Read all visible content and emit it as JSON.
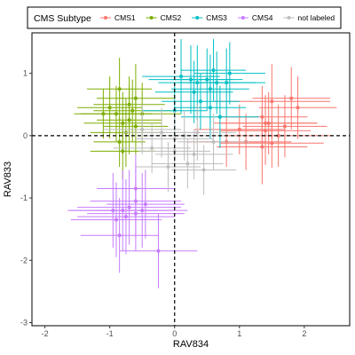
{
  "chart_data": {
    "type": "scatter",
    "title": "",
    "xlabel": "RAV834",
    "ylabel": "RAV833",
    "xlim": [
      -2.2,
      2.7
    ],
    "ylim": [
      -3.05,
      1.65
    ],
    "xticks": [
      -2,
      -1,
      0,
      1,
      2
    ],
    "yticks": [
      -3,
      -2,
      -1,
      0,
      1
    ],
    "reference_lines": {
      "x": 0,
      "y": 0,
      "style": "dashed"
    },
    "grid": false,
    "error_bars": true,
    "legend": {
      "title": "CMS Subtype",
      "placement": "top",
      "entries": [
        "CMS1",
        "CMS2",
        "CMS3",
        "CMS4",
        "not labeled"
      ]
    },
    "series": [
      {
        "name": "CMS1",
        "color": "#F8766D",
        "points": [
          {
            "x": 1.5,
            "y": 0.55,
            "xe": 0.9,
            "ye": 0.6
          },
          {
            "x": 1.35,
            "y": 0.3,
            "xe": 0.7,
            "ye": 0.5
          },
          {
            "x": 1.4,
            "y": 0.2,
            "xe": 0.8,
            "ye": 0.45
          },
          {
            "x": 1.4,
            "y": 0.08,
            "xe": 0.7,
            "ye": 0.55
          },
          {
            "x": 1.45,
            "y": 0.2,
            "xe": 0.75,
            "ye": 0.5
          },
          {
            "x": 1.5,
            "y": -0.12,
            "xe": 0.8,
            "ye": 0.4
          },
          {
            "x": 1.6,
            "y": 0.0,
            "xe": 0.85,
            "ye": 0.5
          },
          {
            "x": 1.35,
            "y": -0.18,
            "xe": 0.7,
            "ye": 0.6
          },
          {
            "x": 0.8,
            "y": -0.1,
            "xe": 0.6,
            "ye": 0.4
          },
          {
            "x": 1.1,
            "y": -0.1,
            "xe": 0.7,
            "ye": 0.45
          },
          {
            "x": 1.8,
            "y": 0.6,
            "xe": 0.6,
            "ye": 0.5
          },
          {
            "x": 1.9,
            "y": 0.45,
            "xe": 0.6,
            "ye": 0.5
          },
          {
            "x": 1.0,
            "y": 0.1,
            "xe": 0.7,
            "ye": 0.4
          },
          {
            "x": 1.7,
            "y": 0.15,
            "xe": 0.65,
            "ye": 0.5
          }
        ]
      },
      {
        "name": "CMS2",
        "color": "#7CAE00",
        "points": [
          {
            "x": -0.85,
            "y": 0.75,
            "xe": 0.5,
            "ye": 0.5
          },
          {
            "x": -0.6,
            "y": 0.6,
            "xe": 0.6,
            "ye": 0.55
          },
          {
            "x": -0.7,
            "y": 0.5,
            "xe": 0.55,
            "ye": 0.45
          },
          {
            "x": -1.0,
            "y": 0.45,
            "xe": 0.5,
            "ye": 0.5
          },
          {
            "x": -0.65,
            "y": 0.4,
            "xe": 0.6,
            "ye": 0.5
          },
          {
            "x": -0.9,
            "y": 0.35,
            "xe": 0.55,
            "ye": 0.45
          },
          {
            "x": -0.5,
            "y": 0.35,
            "xe": 0.6,
            "ye": 0.5
          },
          {
            "x": -0.7,
            "y": 0.25,
            "xe": 0.5,
            "ye": 0.55
          },
          {
            "x": -1.1,
            "y": 0.35,
            "xe": 0.45,
            "ye": 0.4
          },
          {
            "x": -0.8,
            "y": 0.2,
            "xe": 0.6,
            "ye": 0.5
          },
          {
            "x": -0.75,
            "y": 0.05,
            "xe": 0.55,
            "ye": 0.55
          },
          {
            "x": -0.6,
            "y": 0.15,
            "xe": 0.5,
            "ye": 0.45
          },
          {
            "x": -0.8,
            "y": -0.25,
            "xe": 0.5,
            "ye": 0.45
          },
          {
            "x": -0.85,
            "y": -0.1,
            "xe": 0.4,
            "ye": 0.4
          }
        ]
      },
      {
        "name": "CMS3",
        "color": "#00BFC4",
        "points": [
          {
            "x": 0.1,
            "y": 0.95,
            "xe": 0.6,
            "ye": 0.6
          },
          {
            "x": 0.25,
            "y": 0.9,
            "xe": 0.65,
            "ye": 0.55
          },
          {
            "x": 0.35,
            "y": 0.85,
            "xe": 0.6,
            "ye": 0.6
          },
          {
            "x": 0.5,
            "y": 0.9,
            "xe": 0.55,
            "ye": 0.5
          },
          {
            "x": 0.55,
            "y": 0.75,
            "xe": 0.6,
            "ye": 0.55
          },
          {
            "x": 0.65,
            "y": 0.85,
            "xe": 0.6,
            "ye": 0.5
          },
          {
            "x": 0.8,
            "y": 0.85,
            "xe": 0.6,
            "ye": 0.55
          },
          {
            "x": 0.85,
            "y": 1.0,
            "xe": 0.55,
            "ye": 0.5
          },
          {
            "x": 0.6,
            "y": 1.05,
            "xe": 0.5,
            "ye": 0.5
          },
          {
            "x": 0.4,
            "y": 0.55,
            "xe": 0.6,
            "ye": 0.45
          },
          {
            "x": 0.55,
            "y": 0.45,
            "xe": 0.55,
            "ye": 0.5
          },
          {
            "x": 0.0,
            "y": 0.4,
            "xe": 0.5,
            "ye": 0.45
          },
          {
            "x": 0.7,
            "y": 0.3,
            "xe": 0.6,
            "ye": 0.5
          },
          {
            "x": 0.3,
            "y": 0.7,
            "xe": 0.6,
            "ye": 0.5
          }
        ]
      },
      {
        "name": "CMS4",
        "color": "#C77CFF",
        "points": [
          {
            "x": -0.6,
            "y": -1.05,
            "xe": 0.7,
            "ye": 0.6
          },
          {
            "x": -0.7,
            "y": -1.15,
            "xe": 0.8,
            "ye": 0.6
          },
          {
            "x": -0.8,
            "y": -1.2,
            "xe": 0.8,
            "ye": 0.65
          },
          {
            "x": -0.95,
            "y": -1.2,
            "xe": 0.7,
            "ye": 0.6
          },
          {
            "x": -0.6,
            "y": -1.25,
            "xe": 0.75,
            "ye": 0.6
          },
          {
            "x": -0.5,
            "y": -1.2,
            "xe": 0.7,
            "ye": 0.6
          },
          {
            "x": -0.75,
            "y": -1.3,
            "xe": 0.75,
            "ye": 0.6
          },
          {
            "x": -0.9,
            "y": -1.35,
            "xe": 0.7,
            "ye": 0.6
          },
          {
            "x": -0.6,
            "y": -0.85,
            "xe": 0.6,
            "ye": 0.55
          },
          {
            "x": -0.85,
            "y": -1.6,
            "xe": 0.6,
            "ye": 0.6
          },
          {
            "x": -0.25,
            "y": -1.85,
            "xe": 0.6,
            "ye": 0.6
          },
          {
            "x": -0.45,
            "y": -1.1,
            "xe": 0.6,
            "ye": 0.55
          }
        ]
      },
      {
        "name": "not labeled",
        "color": "#BEBEBE",
        "points": [
          {
            "x": -0.2,
            "y": 0.05,
            "xe": 0.6,
            "ye": 0.4
          },
          {
            "x": 0.0,
            "y": -0.05,
            "xe": 0.6,
            "ye": 0.45
          },
          {
            "x": 0.15,
            "y": 0.0,
            "xe": 0.65,
            "ye": 0.4
          },
          {
            "x": 0.35,
            "y": 0.05,
            "xe": 0.6,
            "ye": 0.45
          },
          {
            "x": -0.35,
            "y": -0.2,
            "xe": 0.6,
            "ye": 0.4
          },
          {
            "x": 0.0,
            "y": -0.25,
            "xe": 0.55,
            "ye": 0.45
          },
          {
            "x": 0.3,
            "y": -0.3,
            "xe": 0.6,
            "ye": 0.4
          },
          {
            "x": -0.5,
            "y": 0.1,
            "xe": 0.6,
            "ye": 0.4
          },
          {
            "x": 0.6,
            "y": -0.1,
            "xe": 0.55,
            "ye": 0.45
          },
          {
            "x": 0.2,
            "y": -0.45,
            "xe": 0.55,
            "ye": 0.4
          },
          {
            "x": -0.1,
            "y": -0.5,
            "xe": 0.5,
            "ye": 0.4
          },
          {
            "x": 0.45,
            "y": -0.55,
            "xe": 0.5,
            "ye": 0.4
          }
        ]
      }
    ]
  }
}
